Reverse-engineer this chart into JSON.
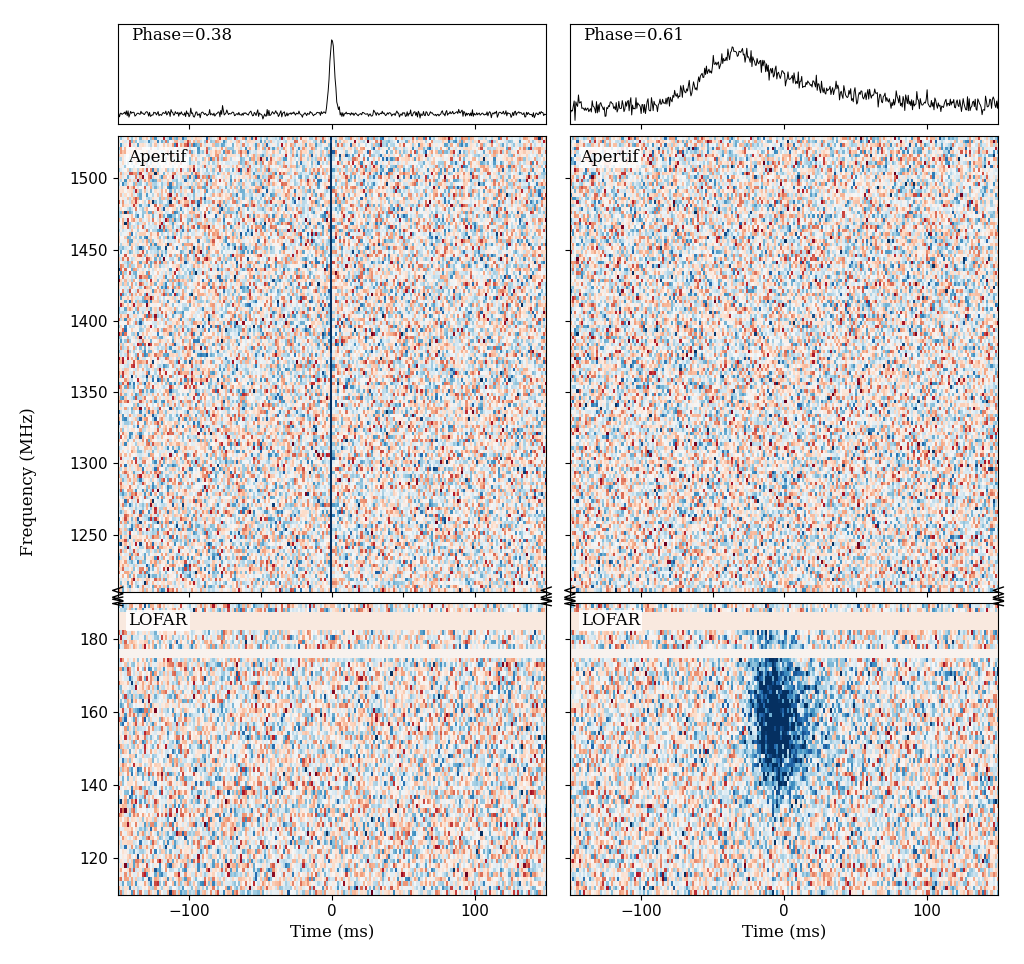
{
  "xlabel": "Time (ms)",
  "ylabel": "Frequency (MHz)",
  "phase1": "Phase=0.38",
  "phase2": "Phase=0.61",
  "label_apertif": "Apertif",
  "label_lofar": "LOFAR",
  "apertif_freq_min": 1210,
  "apertif_freq_max": 1530,
  "lofar_freq_min": 110,
  "lofar_freq_max": 190,
  "time_min": -150,
  "time_max": 150,
  "apertif_yticks": [
    1250,
    1300,
    1350,
    1400,
    1450,
    1500
  ],
  "lofar_yticks": [
    120,
    140,
    160,
    180
  ],
  "time_ticks": [
    -100,
    0,
    100
  ],
  "vmax": 3.0,
  "cmap": "RdBu_r",
  "n_ap_f": 128,
  "n_lo_f": 64,
  "n_t": 200
}
